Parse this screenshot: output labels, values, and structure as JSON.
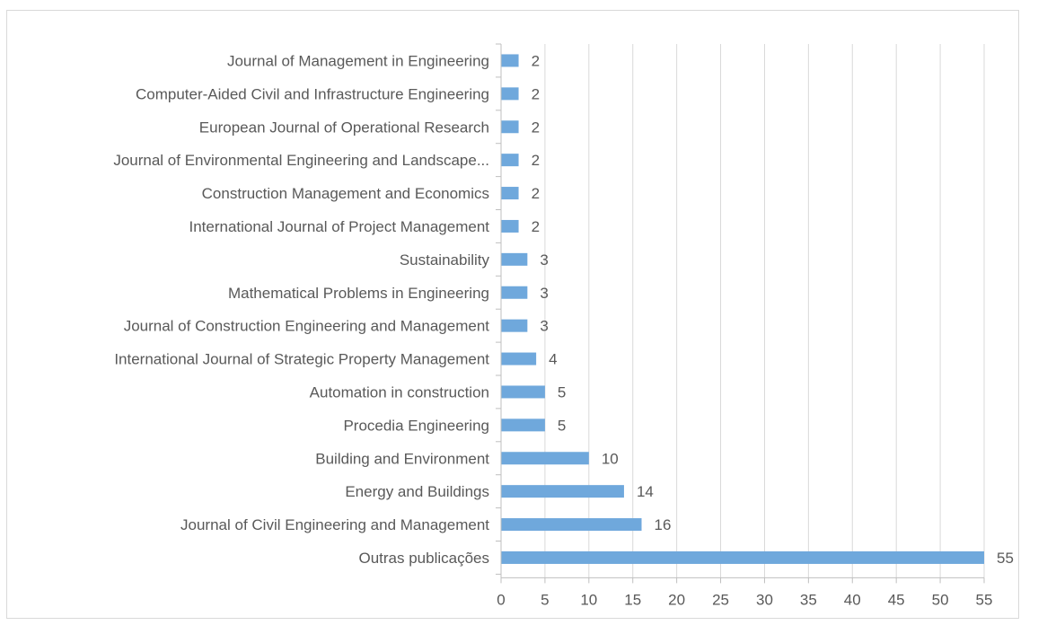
{
  "chart_data": {
    "type": "bar",
    "orientation": "horizontal",
    "categories": [
      "Journal of Management in Engineering",
      "Computer-Aided Civil and Infrastructure Engineering",
      "European Journal of Operational Research",
      "Journal of Environmental Engineering and Landscape...",
      "Construction Management and Economics",
      "International Journal of Project Management",
      "Sustainability",
      "Mathematical Problems in Engineering",
      "Journal of Construction Engineering and Management",
      "International Journal of Strategic Property Management",
      "Automation in construction",
      "Procedia Engineering",
      "Building and Environment",
      "Energy and Buildings",
      "Journal of Civil Engineering and Management",
      "Outras publicações"
    ],
    "values": [
      2,
      2,
      2,
      2,
      2,
      2,
      3,
      3,
      3,
      4,
      5,
      5,
      10,
      14,
      16,
      55
    ],
    "xlim": [
      0,
      55
    ],
    "xticks": [
      0,
      5,
      10,
      15,
      20,
      25,
      30,
      35,
      40,
      45,
      50,
      55
    ],
    "grid": true,
    "legend": "none",
    "bar_color": "#6fa8dc",
    "grid_color": "#d9d9d9",
    "axis_color": "#bfbfbf",
    "title": "",
    "xlabel": "",
    "ylabel": ""
  }
}
